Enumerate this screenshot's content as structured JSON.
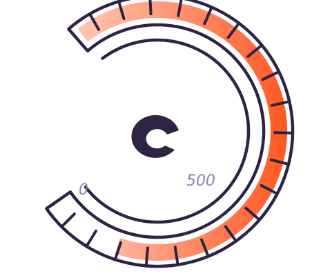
{
  "gauge": {
    "min_label": "0",
    "max_label": "500",
    "min": 0,
    "max": 500,
    "fill_fraction": 0.87,
    "tick_count": 20,
    "colors": {
      "outline": "#2f2343",
      "fill_start": "#fde0d6",
      "fill_end": "#ff5a24",
      "label": "#8d7fae",
      "logo": "#2f2343",
      "background": "#ffffff"
    },
    "center_icon": "c-logo-icon"
  }
}
